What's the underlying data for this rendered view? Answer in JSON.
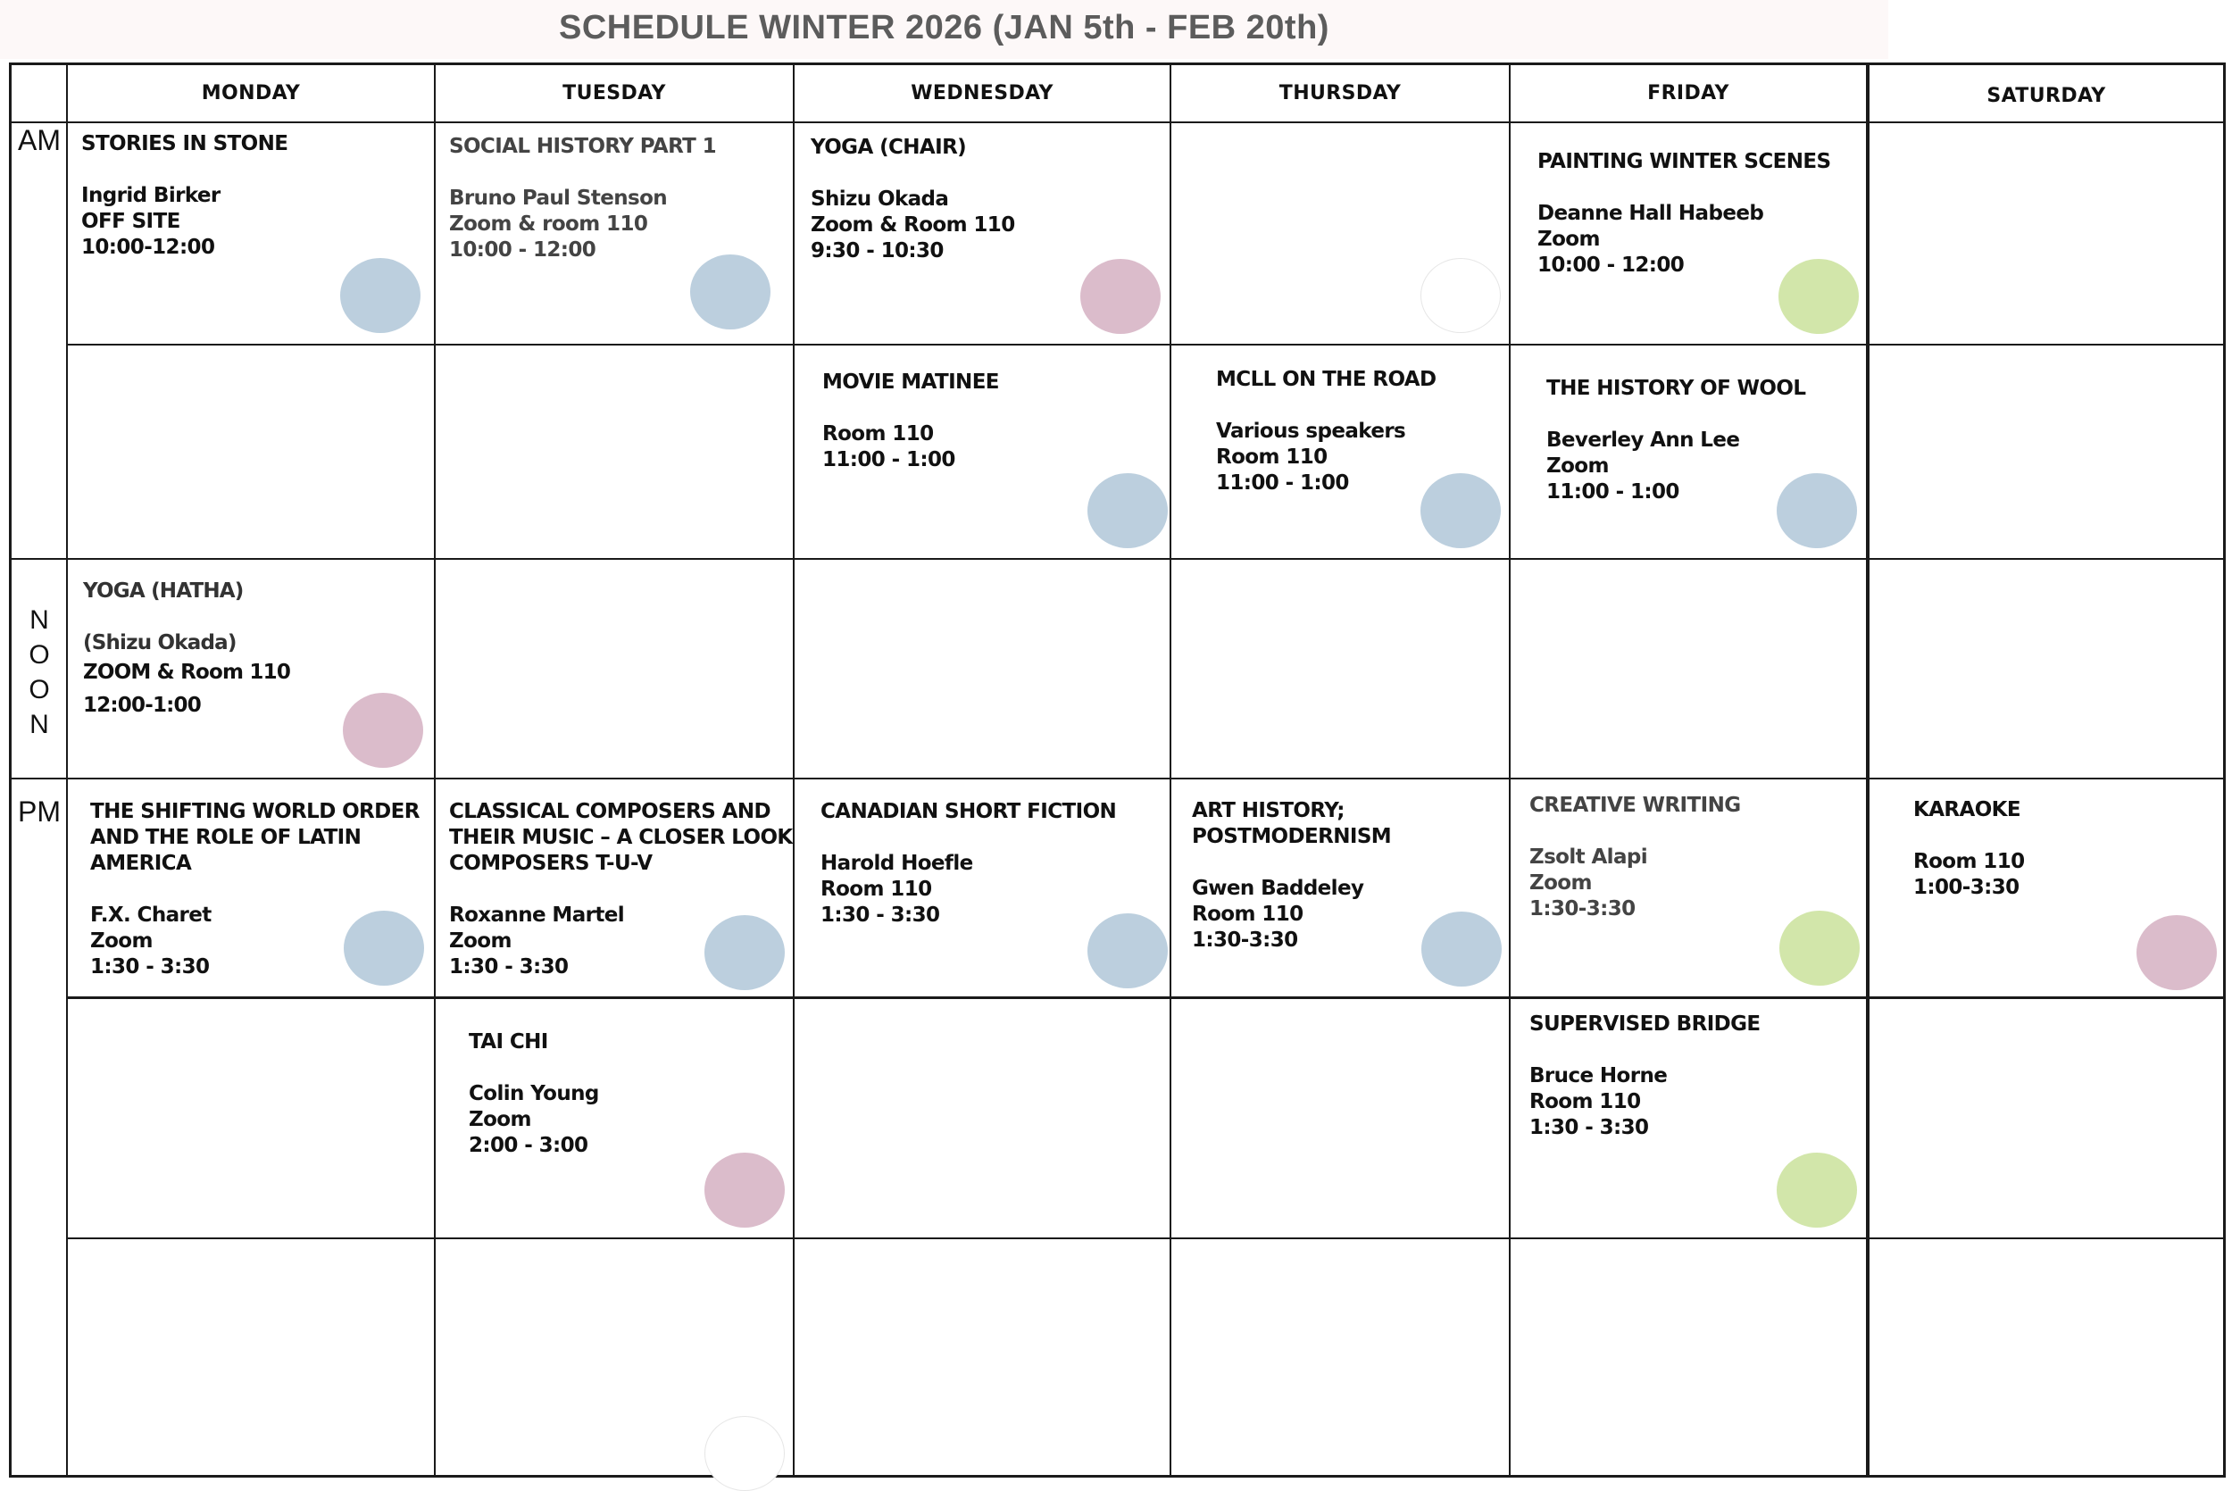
{
  "title": "SCHEDULE WINTER 2026 (JAN 5th - FEB 20th)",
  "days": [
    "MONDAY",
    "TUESDAY",
    "WEDNESDAY",
    "THURSDAY",
    "FRIDAY",
    "SATURDAY"
  ],
  "periods": {
    "am": "AM",
    "noon": [
      "N",
      "O",
      "O",
      "N"
    ],
    "pm": "PM"
  },
  "legend_colors": {
    "blue": "#bccfde",
    "pink": "#dbbccb",
    "green": "#d2e6aa"
  },
  "classes": [
    {
      "title": "STORIES IN STONE",
      "lines": [
        "Ingrid Birker",
        "OFF SITE",
        "10:00-12:00"
      ],
      "color": "blue"
    },
    {
      "title": "SOCIAL HISTORY PART 1",
      "lines": [
        "Bruno Paul Stenson",
        "Zoom & room 110",
        "10:00 - 12:00"
      ],
      "color": "blue"
    },
    {
      "title": "YOGA (CHAIR)",
      "lines": [
        "Shizu Okada",
        "Zoom & Room 110",
        "9:30 - 10:30"
      ],
      "color": "pink"
    },
    {
      "title": "PAINTING WINTER SCENES",
      "lines": [
        "Deanne Hall Habeeb",
        "Zoom",
        "10:00 - 12:00"
      ],
      "color": "green"
    },
    {
      "title": "MOVIE MATINEE",
      "lines": [
        "Room 110",
        "11:00 - 1:00"
      ],
      "color": "blue"
    },
    {
      "title": "MCLL ON THE ROAD",
      "lines": [
        "Various speakers",
        "Room 110",
        "11:00 - 1:00"
      ],
      "color": "blue"
    },
    {
      "title": "THE HISTORY OF WOOL",
      "lines": [
        "Beverley Ann Lee",
        "Zoom",
        "11:00 - 1:00"
      ],
      "color": "blue"
    },
    {
      "title": "YOGA (HATHA)",
      "lines": [
        "(Shizu Okada)",
        "ZOOM & Room  110",
        "12:00-1:00"
      ],
      "color": "pink"
    },
    {
      "title": "THE SHIFTING WORLD ORDER AND THE ROLE OF LATIN AMERICA",
      "lines": [
        "F.X. Charet",
        "Zoom",
        "1:30 - 3:30"
      ],
      "color": "blue"
    },
    {
      "title": "CLASSICAL COMPOSERS AND THEIR MUSIC – A CLOSER LOOK COMPOSERS  T-U-V",
      "lines": [
        "Roxanne Martel",
        "Zoom",
        "1:30 - 3:30"
      ],
      "color": "blue"
    },
    {
      "title": "CANADIAN  SHORT FICTION",
      "lines": [
        "Harold Hoefle",
        "Room 110",
        "1:30 - 3:30"
      ],
      "color": "blue"
    },
    {
      "title": "ART HISTORY; POSTMODERNISM",
      "lines": [
        "Gwen Baddeley",
        "Room 110",
        "1:30-3:30"
      ],
      "color": "blue"
    },
    {
      "title": "CREATIVE WRITING",
      "lines": [
        "Zsolt Alapi",
        "Zoom",
        "1:30-3:30"
      ],
      "color": "green"
    },
    {
      "title": "KARAOKE",
      "lines": [
        "Room 110",
        "1:00-3:30"
      ],
      "color": "pink"
    },
    {
      "title": "TAI CHI",
      "lines": [
        "Colin Young",
        "Zoom",
        "2:00 - 3:00"
      ],
      "color": "pink"
    },
    {
      "title": "SUPERVISED BRIDGE",
      "lines": [
        "Bruce Horne",
        "Room 110",
        "1:30 - 3:30"
      ],
      "color": "green"
    }
  ]
}
